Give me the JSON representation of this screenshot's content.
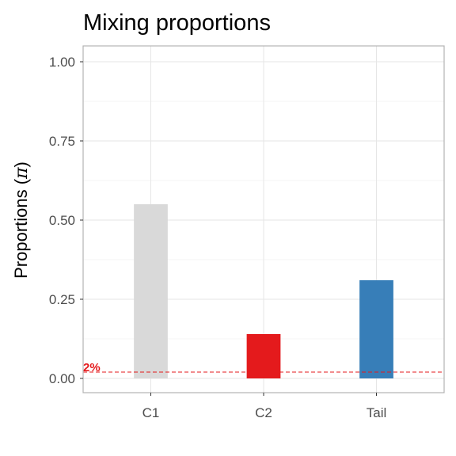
{
  "chart_data": {
    "type": "bar",
    "title": "Mixing proportions",
    "ylabel": "Proportions (",
    "ylabel_symbol": "π",
    "ylabel_suffix": ")",
    "xlabel": "",
    "categories": [
      "C1",
      "C2",
      "Tail"
    ],
    "values": [
      0.55,
      0.14,
      0.31
    ],
    "colors": [
      "#d9d9d9",
      "#e41a1c",
      "#377eb8"
    ],
    "ylim": [
      -0.045,
      1.05
    ],
    "yticks": [
      0.0,
      0.25,
      0.5,
      0.75,
      1.0
    ],
    "ytick_labels": [
      "0.00",
      "0.25",
      "0.50",
      "0.75",
      "1.00"
    ],
    "threshold": {
      "value": 0.02,
      "label": "2%",
      "color": "#e41a1c",
      "style": "dashed"
    },
    "grid": true,
    "legend": "none"
  }
}
